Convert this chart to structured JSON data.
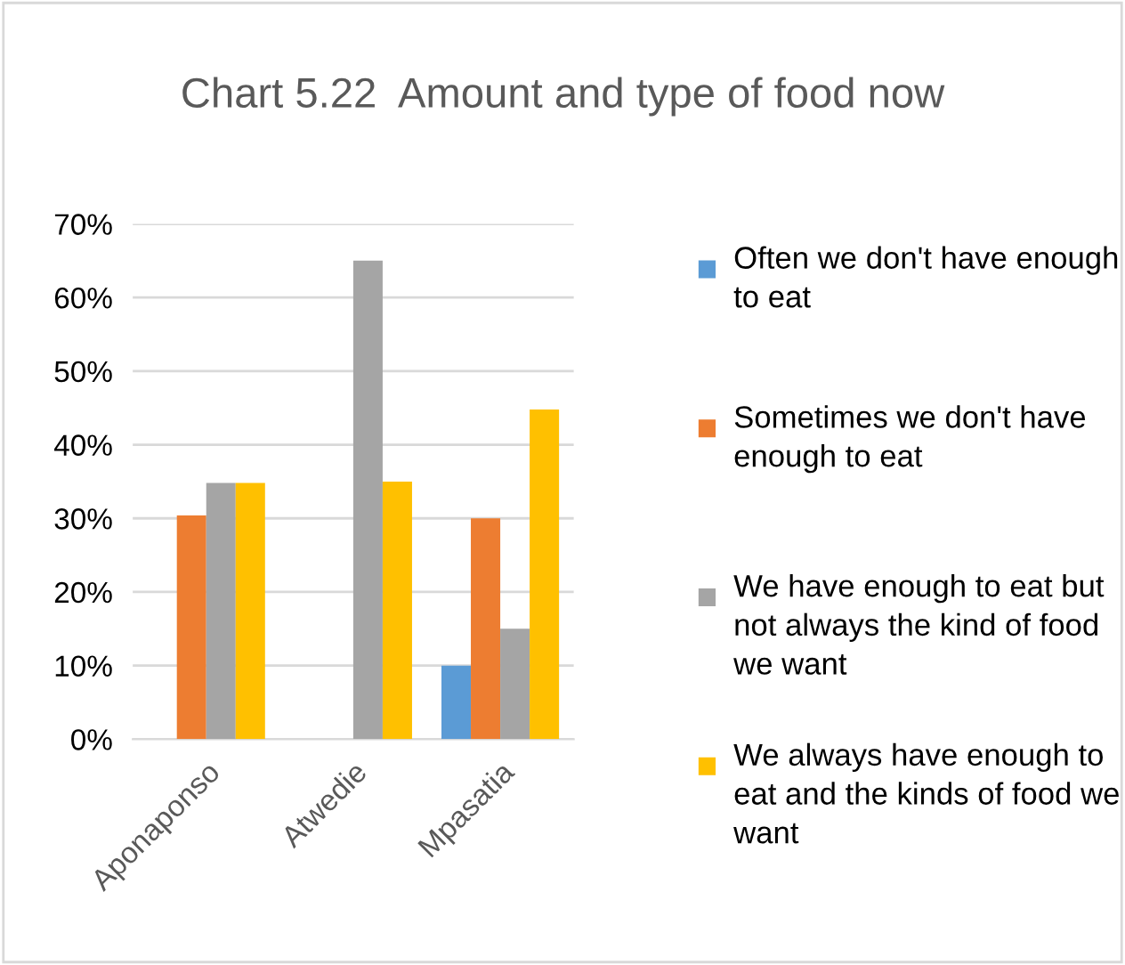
{
  "chart_data": {
    "type": "bar",
    "title": "Chart 5.22  Amount and type of food now",
    "categories": [
      "Aponaponso",
      "Atwedie",
      "Mpasatia"
    ],
    "series": [
      {
        "name": "Often we don't have enough to eat",
        "color": "#5b9bd5",
        "values": [
          0,
          0,
          10
        ]
      },
      {
        "name": "Sometimes we don't have enough to eat",
        "color": "#ed7d31",
        "values": [
          30.4,
          0,
          30
        ]
      },
      {
        "name": "We have enough to eat but not always the kind of food we want",
        "color": "#a5a5a5",
        "values": [
          34.8,
          65,
          15
        ]
      },
      {
        "name": "We always have enough to eat and the kinds of food we want",
        "color": "#ffc000",
        "values": [
          34.8,
          35,
          44.8
        ]
      }
    ],
    "ylim": [
      0,
      70
    ],
    "yticks": [
      {
        "value": 0,
        "label": "0%"
      },
      {
        "value": 10,
        "label": "10%"
      },
      {
        "value": 20,
        "label": "20%"
      },
      {
        "value": 30,
        "label": "30%"
      },
      {
        "value": 40,
        "label": "40%"
      },
      {
        "value": 50,
        "label": "50%"
      },
      {
        "value": 60,
        "label": "60%"
      },
      {
        "value": 70,
        "label": "70%"
      }
    ],
    "grid": "y",
    "legend": "right"
  }
}
